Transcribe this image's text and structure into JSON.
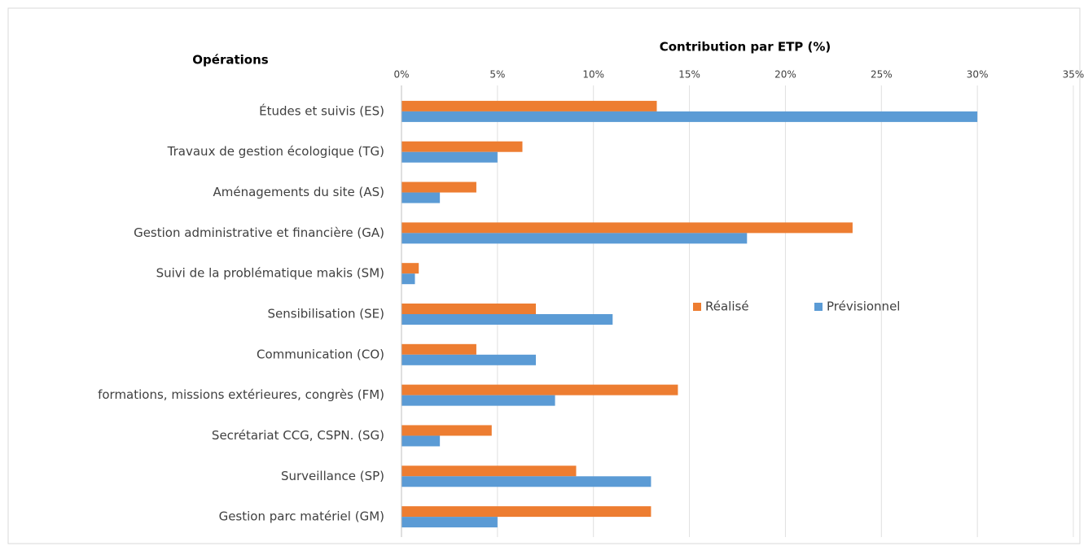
{
  "chart_data": {
    "type": "bar",
    "orientation": "horizontal",
    "title": "Contribution  par ETP (%)",
    "category_axis_title": "Opérations",
    "categories": [
      "Études et suivis (ES)",
      "Travaux de gestion écologique (TG)",
      "Aménagements du site (AS)",
      "Gestion administrative et financière (GA)",
      "Suivi de la problématique makis (SM)",
      "Sensibilisation (SE)",
      "Communication (CO)",
      "formations, missions extérieures, congrès (FM)",
      "Secrétariat CCG, CSPN. (SG)",
      "Surveillance (SP)",
      "Gestion parc matériel (GM)"
    ],
    "series": [
      {
        "name": "Réalisé",
        "color": "#ed7d31",
        "values": [
          13.3,
          6.3,
          3.9,
          23.5,
          0.9,
          7,
          3.9,
          14.4,
          4.7,
          9.1,
          13
        ]
      },
      {
        "name": "Prévisionnel",
        "color": "#5b9bd5",
        "values": [
          30,
          5,
          2,
          18,
          0.7,
          11,
          7,
          8,
          2,
          13,
          5
        ]
      }
    ],
    "xlim": [
      0,
      35
    ],
    "xticks": [
      {
        "value": 0,
        "label": "0%"
      },
      {
        "value": 5,
        "label": "5%"
      },
      {
        "value": 10,
        "label": "10%"
      },
      {
        "value": 15,
        "label": "15%"
      },
      {
        "value": 20,
        "label": "20%"
      },
      {
        "value": 25,
        "label": "25%"
      },
      {
        "value": 30,
        "label": "30%"
      },
      {
        "value": 35,
        "label": "35%"
      }
    ],
    "grid": true
  }
}
